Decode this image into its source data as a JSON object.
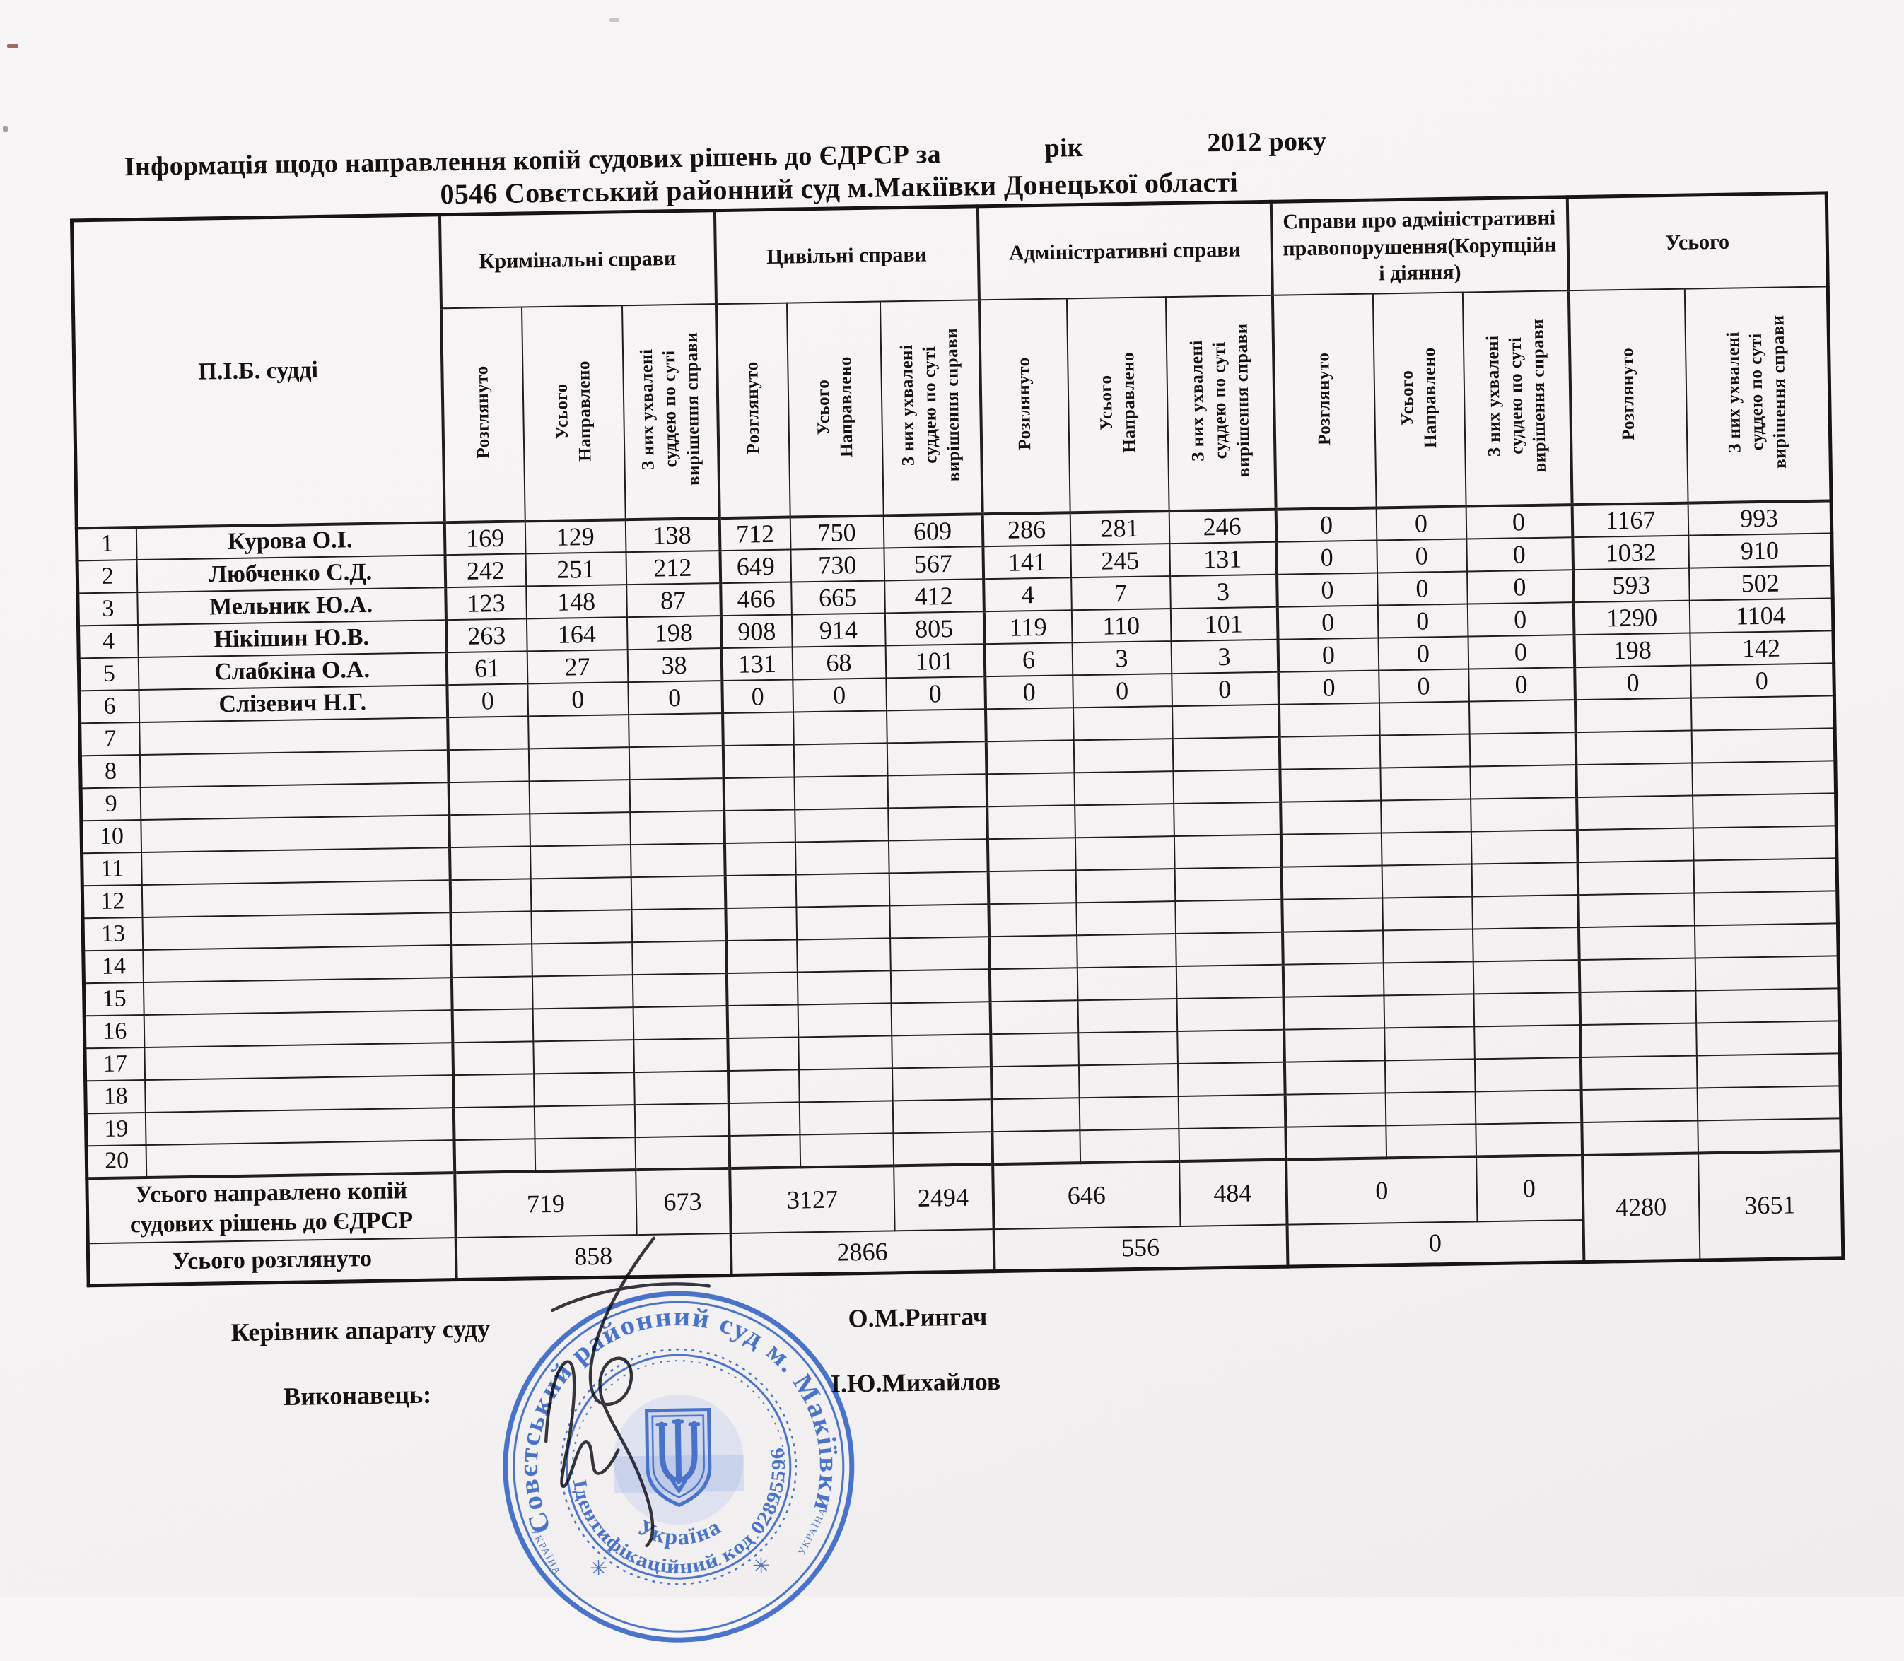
{
  "document": {
    "title_left": "Інформація щодо направлення копій судових рішень до ЄДРСР за",
    "title_mid": "рік",
    "title_year": "2012  року",
    "title_court": "0546 Совєтський районний суд м.Макіївки  Донецької області"
  },
  "table": {
    "corner_header": "П.І.Б. судді",
    "groups": [
      {
        "label": "Кримінальні справи",
        "cols": [
          "Розглянуто",
          "Усього\nНаправлено",
          "З них ухвалені\nсуддею по суті\nвирішення справи"
        ]
      },
      {
        "label": "Цивільні справи",
        "cols": [
          "Розглянуто",
          "Усього\nНаправлено",
          "З них ухвалені\nсуддею по суті\nвирішення справи"
        ]
      },
      {
        "label": "Адміністративні справи",
        "cols": [
          "Розглянуто",
          "Усього\nНаправлено",
          "З них ухвалені\nсуддею по суті\nвирішення справи"
        ]
      },
      {
        "label": "Справи про адміністративні правопорушення(Корупційн і діяння)",
        "cols": [
          "Розглянуто",
          "Усього\nНаправлено",
          "З них ухвалені\nсуддею по суті\nвирішення справи"
        ]
      },
      {
        "label": "Усього",
        "cols": [
          "Розглянуто",
          "З них ухвалені\nсуддею по суті\nвирішення справи"
        ]
      }
    ],
    "rows": [
      {
        "num": "1",
        "name": "Курова О.І.",
        "values": [
          "169",
          "129",
          "138",
          "712",
          "750",
          "609",
          "286",
          "281",
          "246",
          "0",
          "0",
          "0",
          "1167",
          "993"
        ]
      },
      {
        "num": "2",
        "name": "Любченко С.Д.",
        "values": [
          "242",
          "251",
          "212",
          "649",
          "730",
          "567",
          "141",
          "245",
          "131",
          "0",
          "0",
          "0",
          "1032",
          "910"
        ]
      },
      {
        "num": "3",
        "name": "Мельник Ю.А.",
        "values": [
          "123",
          "148",
          "87",
          "466",
          "665",
          "412",
          "4",
          "7",
          "3",
          "0",
          "0",
          "0",
          "593",
          "502"
        ]
      },
      {
        "num": "4",
        "name": "Нікішин Ю.В.",
        "values": [
          "263",
          "164",
          "198",
          "908",
          "914",
          "805",
          "119",
          "110",
          "101",
          "0",
          "0",
          "0",
          "1290",
          "1104"
        ]
      },
      {
        "num": "5",
        "name": "Слабкіна О.А.",
        "values": [
          "61",
          "27",
          "38",
          "131",
          "68",
          "101",
          "6",
          "3",
          "3",
          "0",
          "0",
          "0",
          "198",
          "142"
        ]
      },
      {
        "num": "6",
        "name": "Слізевич Н.Г.",
        "values": [
          "0",
          "0",
          "0",
          "0",
          "0",
          "0",
          "0",
          "0",
          "0",
          "0",
          "0",
          "0",
          "0",
          "0"
        ]
      },
      {
        "num": "7",
        "name": "",
        "values": []
      },
      {
        "num": "8",
        "name": "",
        "values": []
      },
      {
        "num": "9",
        "name": "",
        "values": []
      },
      {
        "num": "10",
        "name": "",
        "values": []
      },
      {
        "num": "11",
        "name": "",
        "values": []
      },
      {
        "num": "12",
        "name": "",
        "values": []
      },
      {
        "num": "13",
        "name": "",
        "values": []
      },
      {
        "num": "14",
        "name": "",
        "values": []
      },
      {
        "num": "15",
        "name": "",
        "values": []
      },
      {
        "num": "16",
        "name": "",
        "values": []
      },
      {
        "num": "17",
        "name": "",
        "values": []
      },
      {
        "num": "18",
        "name": "",
        "values": []
      },
      {
        "num": "19",
        "name": "",
        "values": []
      },
      {
        "num": "20",
        "name": "",
        "values": []
      }
    ],
    "summary_sent": {
      "label": "Усього направлено копій судових рішень до ЄДРСР",
      "criminal_sent": "719",
      "criminal_decided": "673",
      "civil_sent": "3127",
      "civil_decided": "2494",
      "admin_sent": "646",
      "admin_decided": "484",
      "corruption_sent": "0",
      "corruption_decided": "0",
      "total_reviewed": "4280",
      "total_decided": "3651"
    },
    "summary_reviewed": {
      "label": "Усього розглянуто",
      "criminal": "858",
      "civil": "2866",
      "admin": "556",
      "corruption": "0"
    }
  },
  "signatures": {
    "head_label": "Керівник апарату суду",
    "head_name": "О.М.Рингач",
    "executor_label": "Виконавець:",
    "executor_name": "І.Ю.Михайлов"
  },
  "stamp": {
    "outer_text": "Совєтський районний суд м. Макіївки",
    "inner_text": "Ідентифікаційний код 02895596",
    "bottom_text": "Україна",
    "side_text": "УКРАЇНА",
    "star": "✳",
    "color": "#3a67c6"
  }
}
